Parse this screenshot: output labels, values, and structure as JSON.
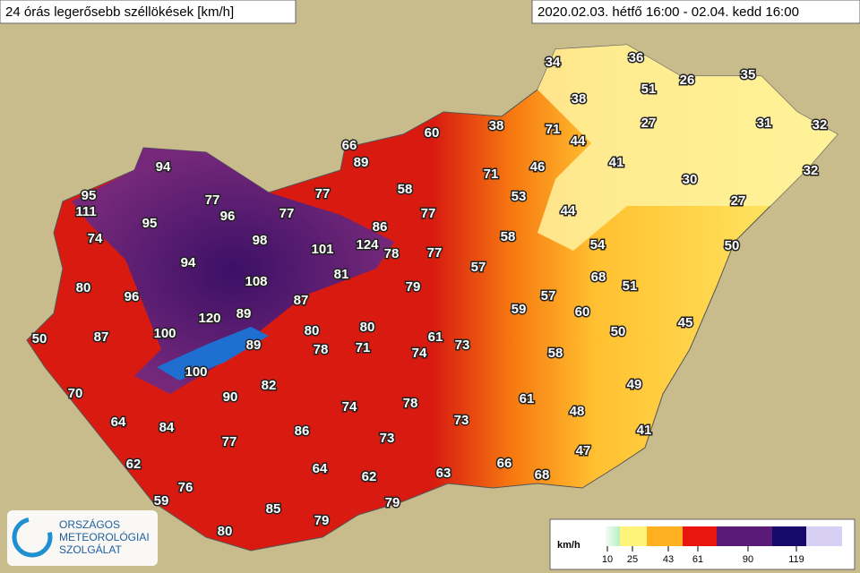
{
  "header": {
    "title": "24 órás legerősebb széllökések [km/h]",
    "period": "2020.02.03. hétfő 16:00 - 02.04. kedd 16:00"
  },
  "stations": [
    34,
    36,
    51,
    26,
    35,
    38,
    38,
    71,
    27,
    31,
    32,
    60,
    44,
    66,
    89,
    46,
    41,
    71,
    32,
    94,
    30,
    95,
    77,
    77,
    58,
    53,
    27,
    111,
    96,
    77,
    77,
    44,
    86,
    95,
    74,
    98,
    101,
    124,
    78,
    77,
    58,
    54,
    50,
    94,
    81,
    57,
    80,
    108,
    79,
    68,
    51,
    96,
    87,
    57,
    120,
    89,
    59,
    60,
    80,
    80,
    45,
    50,
    87,
    100,
    89,
    78,
    71,
    61,
    73,
    74,
    50,
    58,
    100,
    82,
    70,
    90,
    49,
    61,
    74,
    78,
    48,
    64,
    84,
    73,
    41,
    86,
    77,
    73,
    47,
    62,
    64,
    66,
    63,
    68,
    62,
    76,
    59,
    79,
    85,
    79,
    80
  ],
  "legend": {
    "unit": "km/h",
    "ticks": [
      10,
      25,
      43,
      61,
      90,
      119
    ],
    "colors": [
      "#b6f0c4",
      "#fff47a",
      "#ffb020",
      "#e8160e",
      "#5a1a78",
      "#180a6a"
    ]
  },
  "logo": {
    "line1": "ORSZÁGOS",
    "line2": "METEOROLÓGIAI",
    "line3": "SZOLGÁLAT"
  }
}
